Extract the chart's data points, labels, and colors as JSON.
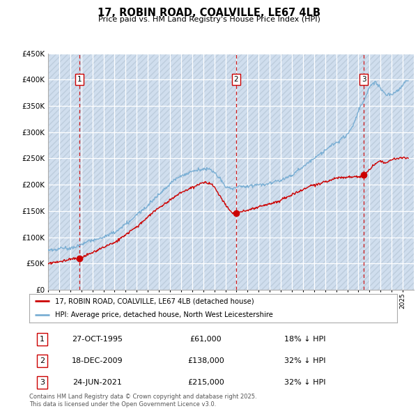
{
  "title": "17, ROBIN ROAD, COALVILLE, LE67 4LB",
  "subtitle": "Price paid vs. HM Land Registry's House Price Index (HPI)",
  "ylim": [
    0,
    450000
  ],
  "yticks": [
    0,
    50000,
    100000,
    150000,
    200000,
    250000,
    300000,
    350000,
    400000,
    450000
  ],
  "bg_color": "#dce9f5",
  "grid_color": "#ffffff",
  "hatch_color": "#c5d5e8",
  "sales": [
    {
      "num": 1,
      "date": "27-OCT-1995",
      "price": 61000,
      "hpi_pct": "18% ↓ HPI",
      "year": 1995.83
    },
    {
      "num": 2,
      "date": "18-DEC-2009",
      "price": 138000,
      "hpi_pct": "32% ↓ HPI",
      "year": 2009.96
    },
    {
      "num": 3,
      "date": "24-JUN-2021",
      "price": 215000,
      "hpi_pct": "32% ↓ HPI",
      "year": 2021.48
    }
  ],
  "legend_line1": "17, ROBIN ROAD, COALVILLE, LE67 4LB (detached house)",
  "legend_line2": "HPI: Average price, detached house, North West Leicestershire",
  "footer": "Contains HM Land Registry data © Crown copyright and database right 2025.\nThis data is licensed under the Open Government Licence v3.0.",
  "red_color": "#cc0000",
  "blue_color": "#7bafd4",
  "xmin": 1993,
  "xmax": 2026
}
